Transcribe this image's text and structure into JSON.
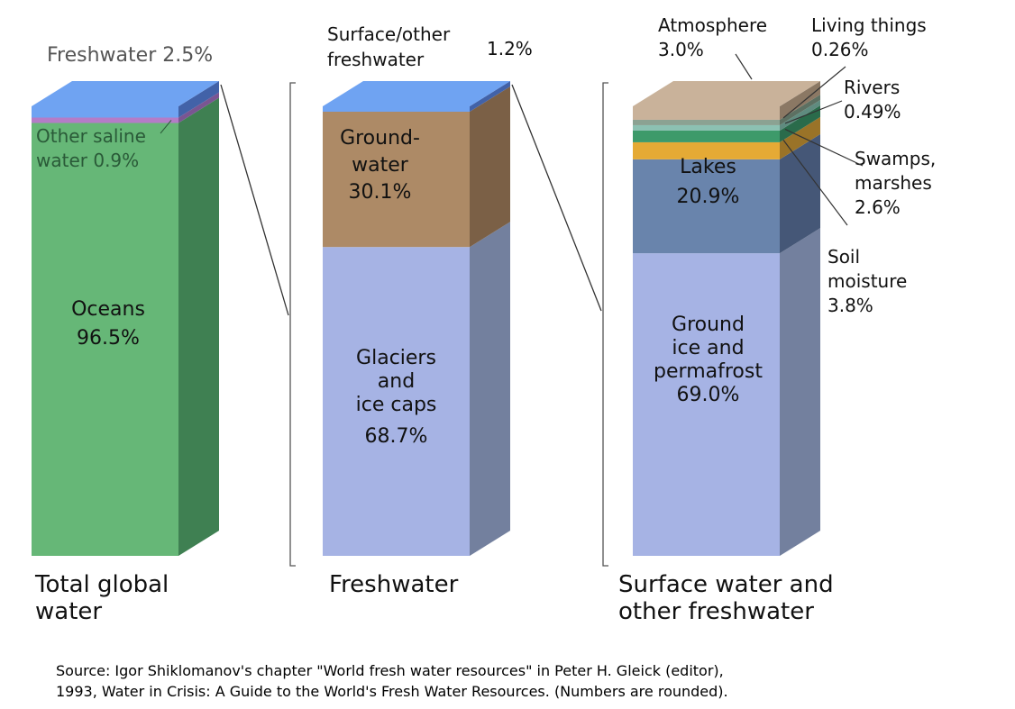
{
  "chart_data": {
    "type": "bar",
    "stacked": true,
    "unit": "%",
    "bars": [
      {
        "category": "Total global water",
        "category_lines": [
          "Total global",
          "water"
        ],
        "segments": [
          {
            "name": "Oceans",
            "value": 96.5,
            "color": "#66b777",
            "side_color": "#3f8052",
            "label_lines": [
              "Oceans",
              "96.5%"
            ]
          },
          {
            "name": "Other saline water",
            "value": 0.9,
            "color": "#b47cc7",
            "side_color": "#7a5592",
            "label_lines": [
              "Other saline",
              "water 0.9%"
            ]
          },
          {
            "name": "Freshwater",
            "value": 2.5,
            "color": "#6fa3f2",
            "side_color": "#4262a8",
            "label_lines": [
              "Freshwater 2.5%"
            ]
          }
        ]
      },
      {
        "category": "Freshwater",
        "category_lines": [
          "Freshwater"
        ],
        "segments": [
          {
            "name": "Glaciers and ice caps",
            "value": 68.7,
            "color": "#a6b3e4",
            "side_color": "#73809e",
            "label_lines": [
              "Glaciers",
              "and",
              "ice caps",
              "68.7%"
            ]
          },
          {
            "name": "Groundwater",
            "value": 30.1,
            "color": "#ad8a66",
            "side_color": "#7b6046",
            "label_lines": [
              "Ground-",
              "water",
              "30.1%"
            ]
          },
          {
            "name": "Surface/other freshwater",
            "value": 1.2,
            "color": "#6fa3f2",
            "side_color": "#4262a8",
            "label_lines": [
              "Surface/other",
              "freshwater"
            ],
            "value_label": "1.2%"
          }
        ]
      },
      {
        "category": "Surface water and other freshwater",
        "category_lines": [
          "Surface water and",
          "other freshwater"
        ],
        "segments": [
          {
            "name": "Ground ice and permafrost",
            "value": 69.0,
            "color": "#a6b3e4",
            "side_color": "#73809e",
            "label_lines": [
              "Ground",
              "ice and",
              "permafrost",
              "69.0%"
            ]
          },
          {
            "name": "Lakes",
            "value": 20.9,
            "color": "#6984ac",
            "side_color": "#455777",
            "label_lines": [
              "Lakes",
              "20.9%"
            ]
          },
          {
            "name": "Soil moisture",
            "value": 3.8,
            "color": "#e5aa35",
            "side_color": "#9a7328",
            "label_lines": [
              "Soil",
              "moisture",
              "3.8%"
            ]
          },
          {
            "name": "Swamps, marshes",
            "value": 2.6,
            "color": "#3d9a6a",
            "side_color": "#2a6b4b",
            "label_lines": [
              "Swamps,",
              "marshes",
              "2.6%"
            ]
          },
          {
            "name": "Rivers",
            "value": 0.49,
            "color": "#8cc1b2",
            "side_color": "#5f8b7f",
            "label_lines": [
              "Rivers",
              "0.49%"
            ]
          },
          {
            "name": "Living things",
            "value": 0.26,
            "color": "#8ba292",
            "side_color": "#5c7062",
            "label_lines": [
              "Living things",
              "0.26%"
            ]
          },
          {
            "name": "Atmosphere",
            "value": 3.0,
            "color": "#c9b29a",
            "side_color": "#8b7864",
            "label_lines": [
              "Atmosphere",
              "3.0%"
            ]
          }
        ]
      }
    ]
  },
  "source": {
    "line1": "Source: Igor Shiklomanov's chapter \"World fresh water resources\" in Peter H. Gleick (editor),",
    "line2": "1993, Water in Crisis: A Guide to the World's Fresh Water Resources. (Numbers are rounded)."
  }
}
